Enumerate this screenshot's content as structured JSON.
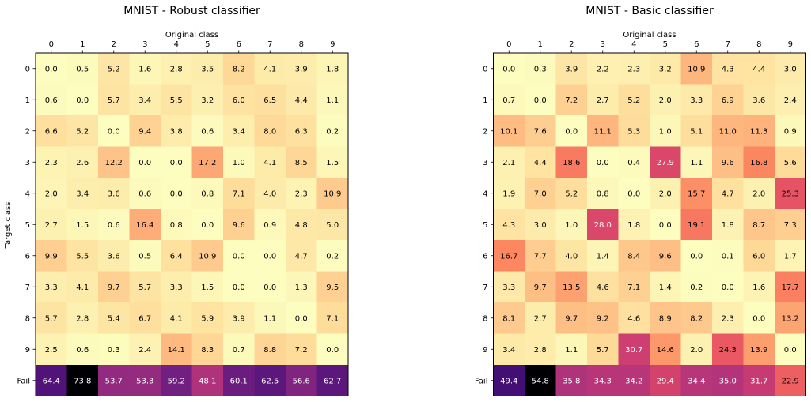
{
  "chart_data": [
    {
      "type": "heatmap",
      "title": "MNIST - Robust classifier",
      "xlabel": "Original class",
      "ylabel": "Target class",
      "x_categories": [
        "0",
        "1",
        "2",
        "3",
        "4",
        "5",
        "6",
        "7",
        "8",
        "9"
      ],
      "y_categories": [
        "0",
        "1",
        "2",
        "3",
        "4",
        "5",
        "6",
        "7",
        "8",
        "9",
        "Fail"
      ],
      "colormap": "magma",
      "value_range": [
        0,
        73.8
      ],
      "values": [
        [
          0.0,
          0.5,
          5.2,
          1.6,
          2.8,
          3.5,
          8.2,
          4.1,
          3.9,
          1.8
        ],
        [
          0.6,
          0.0,
          5.7,
          3.4,
          5.5,
          3.2,
          6.0,
          6.5,
          4.4,
          1.1
        ],
        [
          6.6,
          5.2,
          0.0,
          9.4,
          3.8,
          0.6,
          3.4,
          8.0,
          6.3,
          0.2
        ],
        [
          2.3,
          2.6,
          12.2,
          0.0,
          0.0,
          17.2,
          1.0,
          4.1,
          8.5,
          1.5
        ],
        [
          2.0,
          3.4,
          3.6,
          0.6,
          0.0,
          0.8,
          7.1,
          4.0,
          2.3,
          10.9
        ],
        [
          2.7,
          1.5,
          0.6,
          16.4,
          0.8,
          0.0,
          9.6,
          0.9,
          4.8,
          5.0
        ],
        [
          9.9,
          5.5,
          3.6,
          0.5,
          6.4,
          10.9,
          0.0,
          0.0,
          4.7,
          0.2
        ],
        [
          3.3,
          4.1,
          9.7,
          5.7,
          3.3,
          1.5,
          0.0,
          0.0,
          1.3,
          9.5
        ],
        [
          5.7,
          2.8,
          5.4,
          6.7,
          4.1,
          5.9,
          3.9,
          1.1,
          0.0,
          7.1
        ],
        [
          2.5,
          0.6,
          0.3,
          2.4,
          14.1,
          8.3,
          0.7,
          8.8,
          7.2,
          0.0
        ],
        [
          64.4,
          73.8,
          53.7,
          53.3,
          59.2,
          48.1,
          60.1,
          62.5,
          56.6,
          62.7
        ]
      ]
    },
    {
      "type": "heatmap",
      "title": "MNIST - Basic classifier",
      "xlabel": "Original class",
      "ylabel": "",
      "x_categories": [
        "0",
        "1",
        "2",
        "3",
        "4",
        "5",
        "6",
        "7",
        "8",
        "9"
      ],
      "y_categories": [
        "0",
        "1",
        "2",
        "3",
        "4",
        "5",
        "6",
        "7",
        "8",
        "9",
        "Fail"
      ],
      "colormap": "magma",
      "value_range": [
        0,
        54.8
      ],
      "values": [
        [
          0.0,
          0.3,
          3.9,
          2.2,
          2.3,
          3.2,
          10.9,
          4.3,
          4.4,
          3.0
        ],
        [
          0.7,
          0.0,
          7.2,
          2.7,
          5.2,
          2.0,
          3.3,
          6.9,
          3.6,
          2.4
        ],
        [
          10.1,
          7.6,
          0.0,
          11.1,
          5.3,
          1.0,
          5.1,
          11.0,
          11.3,
          0.9
        ],
        [
          2.1,
          4.4,
          18.6,
          0.0,
          0.4,
          27.9,
          1.1,
          9.6,
          16.8,
          5.6
        ],
        [
          1.9,
          7.0,
          5.2,
          0.8,
          0.0,
          2.0,
          15.7,
          4.7,
          2.0,
          25.3
        ],
        [
          4.3,
          3.0,
          1.0,
          28.0,
          1.8,
          0.0,
          19.1,
          1.8,
          8.7,
          7.3
        ],
        [
          16.7,
          7.7,
          4.0,
          1.4,
          8.4,
          9.6,
          0.0,
          0.1,
          6.0,
          1.7
        ],
        [
          3.3,
          9.7,
          13.5,
          4.6,
          7.1,
          1.4,
          0.2,
          0.0,
          1.6,
          17.7
        ],
        [
          8.1,
          2.7,
          9.7,
          9.2,
          4.6,
          8.9,
          8.2,
          2.3,
          0.0,
          13.2
        ],
        [
          3.4,
          2.8,
          1.1,
          5.7,
          30.7,
          14.6,
          2.0,
          24.3,
          13.9,
          0.0
        ],
        [
          49.4,
          54.8,
          35.8,
          34.3,
          34.2,
          29.4,
          34.4,
          35.0,
          31.7,
          22.9
        ]
      ]
    }
  ]
}
